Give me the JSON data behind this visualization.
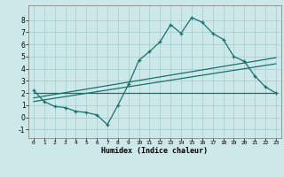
{
  "xlabel": "Humidex (Indice chaleur)",
  "background_color": "#cce8e8",
  "grid_color": "#aacfcf",
  "line_color": "#1a7070",
  "xlim": [
    -0.5,
    23.5
  ],
  "ylim": [
    -1.7,
    9.2
  ],
  "xticks": [
    0,
    1,
    2,
    3,
    4,
    5,
    6,
    7,
    8,
    9,
    10,
    11,
    12,
    13,
    14,
    15,
    16,
    17,
    18,
    19,
    20,
    21,
    22,
    23
  ],
  "yticks": [
    -1,
    0,
    1,
    2,
    3,
    4,
    5,
    6,
    7,
    8
  ],
  "line1_x": [
    0,
    1,
    2,
    3,
    4,
    5,
    6,
    7,
    8,
    9,
    10,
    11,
    12,
    13,
    14,
    15,
    16,
    17,
    18,
    19,
    20,
    21,
    22,
    23
  ],
  "line1_y": [
    2.2,
    1.3,
    0.9,
    0.8,
    0.5,
    0.4,
    0.2,
    -0.6,
    1.0,
    2.7,
    4.7,
    5.4,
    6.2,
    7.6,
    6.9,
    8.2,
    7.8,
    6.9,
    6.4,
    5.0,
    4.6,
    3.4,
    2.5,
    2.0
  ],
  "line2_x": [
    0,
    23
  ],
  "line2_y": [
    2.0,
    2.0
  ],
  "line3_x": [
    0,
    23
  ],
  "line3_y": [
    1.3,
    4.4
  ],
  "line4_x": [
    0,
    23
  ],
  "line4_y": [
    1.6,
    4.9
  ]
}
